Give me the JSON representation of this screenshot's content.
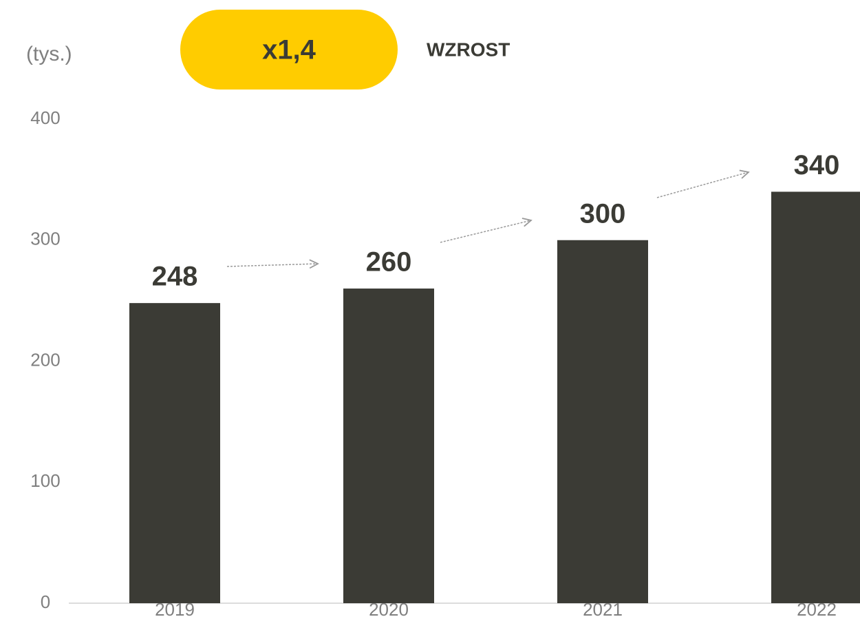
{
  "chart_data": {
    "type": "bar",
    "y_label": "(tys.)",
    "badge": "x1,4",
    "badge_color": "#ffcc00",
    "annotation": "WZROST",
    "categories": [
      "2019",
      "2020",
      "2021",
      "2022"
    ],
    "values": [
      248,
      260,
      300,
      340
    ],
    "color": "#3b3b35",
    "ylim": [
      0,
      400
    ],
    "yticks": [
      0,
      100,
      200,
      300,
      400
    ],
    "grid": false
  }
}
